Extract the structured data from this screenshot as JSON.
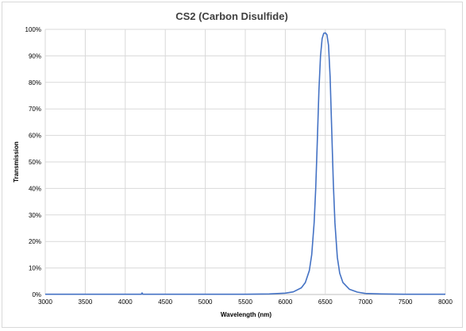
{
  "chart_data": {
    "type": "line",
    "title": "CS2 (Carbon Disulfide)",
    "xlabel": "Wavelength (nm)",
    "ylabel": "Transmission",
    "xlim": [
      3000,
      8000
    ],
    "ylim": [
      0,
      100
    ],
    "x_ticks": [
      "3000",
      "3500",
      "4000",
      "4500",
      "5000",
      "5500",
      "6000",
      "6500",
      "7000",
      "7500",
      "8000"
    ],
    "y_ticks": [
      "0%",
      "10%",
      "20%",
      "30%",
      "40%",
      "50%",
      "60%",
      "70%",
      "80%",
      "90%",
      "100%"
    ],
    "grid": true,
    "legend": "none",
    "series": [
      {
        "color": "#4472c4",
        "x": [
          3000,
          4000,
          4200,
          4210,
          4220,
          4300,
          5000,
          5500,
          5800,
          6000,
          6100,
          6200,
          6250,
          6300,
          6330,
          6360,
          6380,
          6400,
          6420,
          6440,
          6460,
          6480,
          6500,
          6520,
          6540,
          6560,
          6580,
          6600,
          6620,
          6650,
          6680,
          6720,
          6800,
          6900,
          7000,
          7200,
          7500,
          8000
        ],
        "values": [
          0.1,
          0.1,
          0.1,
          0.6,
          0.1,
          0.1,
          0.1,
          0.1,
          0.2,
          0.5,
          1.0,
          2.5,
          4.5,
          9.0,
          15.0,
          27.0,
          40.0,
          58.0,
          77.0,
          90.0,
          96.5,
          98.5,
          98.7,
          98.0,
          94.0,
          82.0,
          62.0,
          42.0,
          27.0,
          14.0,
          8.0,
          4.5,
          2.0,
          0.9,
          0.4,
          0.2,
          0.1,
          0.1
        ]
      }
    ]
  }
}
